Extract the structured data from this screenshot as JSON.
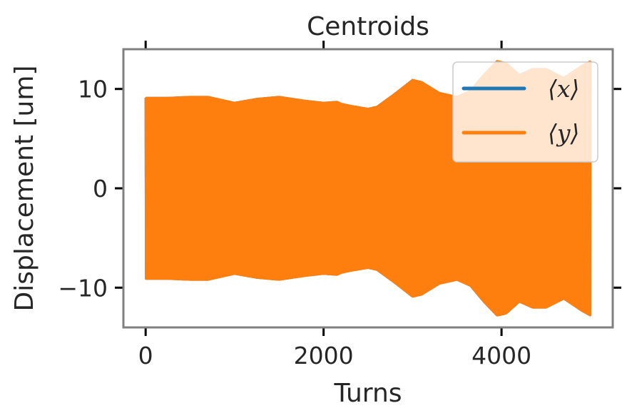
{
  "chart_data": {
    "type": "line",
    "title": "Centroids",
    "xlabel": "Turns",
    "ylabel": "Displacement [um]",
    "xlim": [
      -250,
      5250
    ],
    "ylim": [
      -14,
      14
    ],
    "xticks": [
      0,
      2000,
      4000
    ],
    "xtick_labels": [
      "0",
      "2000",
      "4000"
    ],
    "yticks": [
      -10,
      0,
      10
    ],
    "ytick_labels": [
      "−10",
      "0",
      "10"
    ],
    "grid": false,
    "legend_position": "top-right",
    "series": [
      {
        "name": "⟨x⟩",
        "color": "#1f77b4",
        "style": "oscillation",
        "envelope_x": [
          0,
          250,
          500,
          700,
          900,
          1000,
          1250,
          1500,
          1800,
          2000,
          2150,
          2200,
          2300,
          2500,
          2600,
          2800,
          3000,
          3100,
          3300,
          3500,
          3650,
          3800,
          3950,
          4050,
          4200,
          4350,
          4500,
          4700,
          4900,
          5000
        ],
        "envelope": [
          9.1,
          9.1,
          9.2,
          9.2,
          8.8,
          8.6,
          9.0,
          9.2,
          8.8,
          8.6,
          8.7,
          8.5,
          8.3,
          8.0,
          8.2,
          9.5,
          10.9,
          10.7,
          9.6,
          9.2,
          9.8,
          11.4,
          12.8,
          12.6,
          11.4,
          12.0,
          12.0,
          11.1,
          12.3,
          12.8
        ]
      },
      {
        "name": "⟨y⟩",
        "color": "#ff7f0e",
        "style": "oscillation",
        "envelope_x": [
          0,
          250,
          500,
          700,
          900,
          1000,
          1250,
          1500,
          1800,
          2000,
          2150,
          2200,
          2300,
          2500,
          2600,
          2800,
          3000,
          3100,
          3300,
          3500,
          3650,
          3800,
          3950,
          4050,
          4200,
          4350,
          4500,
          4700,
          4900,
          5000
        ],
        "envelope": [
          9.1,
          9.1,
          9.2,
          9.2,
          8.8,
          8.6,
          9.0,
          9.2,
          8.8,
          8.6,
          8.7,
          8.5,
          8.3,
          8.0,
          8.2,
          9.5,
          10.9,
          10.7,
          9.6,
          9.2,
          9.8,
          11.4,
          12.8,
          12.6,
          11.4,
          12.0,
          12.0,
          11.1,
          12.3,
          12.8
        ]
      }
    ]
  }
}
